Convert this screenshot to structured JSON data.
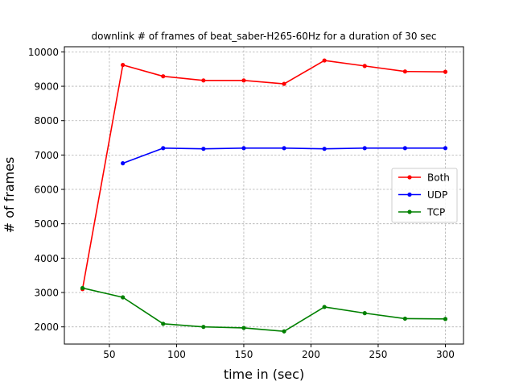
{
  "chart_data": {
    "type": "line",
    "title": "downlink # of frames of beat_saber-H265-60Hz for a duration of 30 sec",
    "xlabel": "time in (sec)",
    "ylabel": "# of frames",
    "xlim": [
      16.5,
      313.5
    ],
    "ylim": [
      1500,
      10150
    ],
    "xticks": [
      50,
      100,
      150,
      200,
      250,
      300
    ],
    "yticks": [
      2000,
      3000,
      4000,
      5000,
      6000,
      7000,
      8000,
      9000,
      10000
    ],
    "grid": true,
    "legend_position": "center-right",
    "series": [
      {
        "name": "Both",
        "color": "#ff0000",
        "x": [
          30,
          60,
          90,
          120,
          150,
          180,
          210,
          240,
          270,
          300
        ],
        "y": [
          3100,
          9620,
          9290,
          9170,
          9170,
          9070,
          9750,
          9590,
          9430,
          9420
        ]
      },
      {
        "name": "UDP",
        "color": "#0000ff",
        "x": [
          60,
          90,
          120,
          150,
          180,
          210,
          240,
          270,
          300
        ],
        "y": [
          6760,
          7200,
          7180,
          7200,
          7200,
          7180,
          7200,
          7200,
          7200
        ]
      },
      {
        "name": "TCP",
        "color": "#008000",
        "x": [
          30,
          60,
          90,
          120,
          150,
          180,
          210,
          240,
          270,
          300
        ],
        "y": [
          3130,
          2860,
          2090,
          2000,
          1970,
          1870,
          2580,
          2400,
          2240,
          2230
        ]
      }
    ]
  }
}
